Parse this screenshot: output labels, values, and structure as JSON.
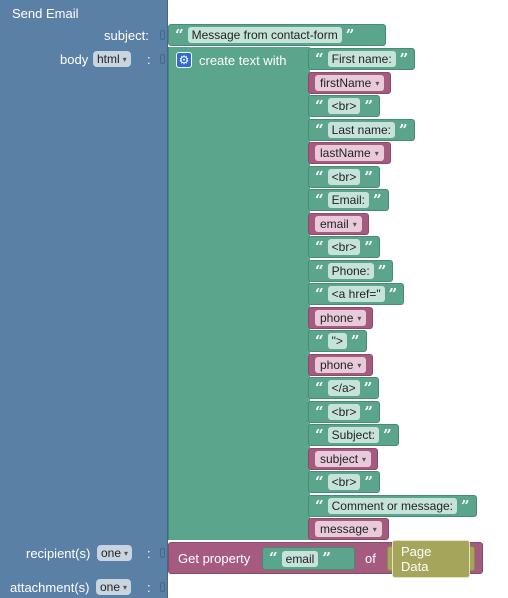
{
  "send_email": {
    "title": "Send Email",
    "subject_label": "subject:",
    "body_label": "body",
    "body_format": "html",
    "recipients_label": "recipient(s)",
    "recipients_mode": "one",
    "attachments_label": "attachment(s)",
    "attachments_mode": "one"
  },
  "subject_value": "Message from contact-form",
  "create_text": {
    "label": "create text with",
    "items": [
      {
        "kind": "text",
        "value": "First name:"
      },
      {
        "kind": "var",
        "value": "firstName"
      },
      {
        "kind": "text",
        "value": "<br>"
      },
      {
        "kind": "text",
        "value": "Last name:"
      },
      {
        "kind": "var",
        "value": "lastName"
      },
      {
        "kind": "text",
        "value": "<br>"
      },
      {
        "kind": "text",
        "value": "Email:"
      },
      {
        "kind": "var",
        "value": "email"
      },
      {
        "kind": "text",
        "value": "<br>"
      },
      {
        "kind": "text",
        "value": "Phone:"
      },
      {
        "kind": "text",
        "value": "<a href=\""
      },
      {
        "kind": "var",
        "value": "phone"
      },
      {
        "kind": "text",
        "value": "\">"
      },
      {
        "kind": "var",
        "value": "phone"
      },
      {
        "kind": "text",
        "value": "</a>"
      },
      {
        "kind": "text",
        "value": "<br>"
      },
      {
        "kind": "text",
        "value": "Subject:"
      },
      {
        "kind": "var",
        "value": "subject"
      },
      {
        "kind": "text",
        "value": "<br>"
      },
      {
        "kind": "text",
        "value": "Comment or message:"
      },
      {
        "kind": "var",
        "value": "message"
      }
    ]
  },
  "get_property": {
    "label": "Get property",
    "property": "email",
    "of_label": "of",
    "source": "Page Data"
  },
  "glyphs": {
    "open_quote": "“",
    "close_quote": "”",
    "caret": "▾",
    "gear": "⚙"
  },
  "colors": {
    "send_block": "#5b80a5",
    "text_block": "#5ba58c",
    "variable_block": "#a55b80",
    "page_data_block": "#a5a55b"
  }
}
